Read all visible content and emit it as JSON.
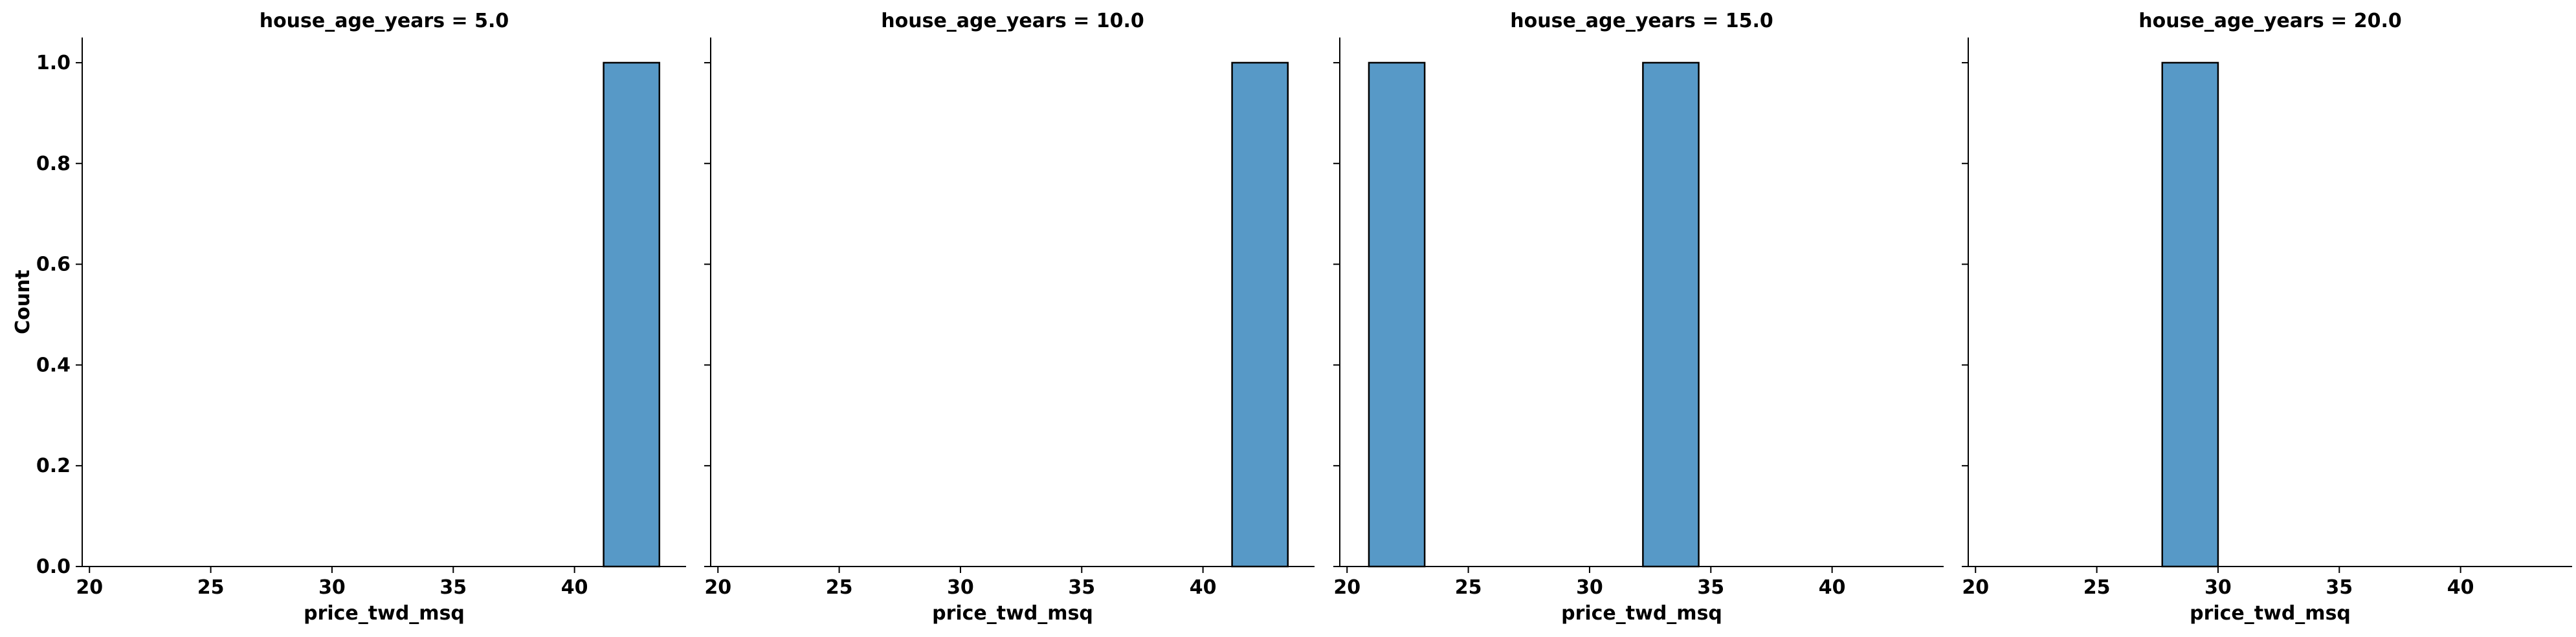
{
  "chart_data": {
    "type": "bar",
    "ylabel": "Count",
    "xlabel": "price_twd_msq",
    "xlim": [
      19.7,
      44.6
    ],
    "ylim": [
      0,
      1.05
    ],
    "xticks": [
      "20",
      "25",
      "30",
      "35",
      "40"
    ],
    "yticks": [
      "0.0",
      "0.2",
      "0.4",
      "0.6",
      "0.8",
      "1.0"
    ],
    "bar_color": "#5799c7",
    "bar_edge_color": "#000000",
    "sharey": true,
    "facets": [
      {
        "title": "house_age_years = 5.0",
        "bars": [
          {
            "x0": 41.2,
            "x1": 43.5,
            "count": 1
          }
        ]
      },
      {
        "title": "house_age_years = 10.0",
        "bars": [
          {
            "x0": 41.2,
            "x1": 43.5,
            "count": 1
          }
        ]
      },
      {
        "title": "house_age_years = 15.0",
        "bars": [
          {
            "x0": 20.9,
            "x1": 23.2,
            "count": 1
          },
          {
            "x0": 32.2,
            "x1": 34.5,
            "count": 1
          }
        ]
      },
      {
        "title": "house_age_years = 20.0",
        "bars": [
          {
            "x0": 27.7,
            "x1": 30.0,
            "count": 1
          }
        ]
      }
    ]
  }
}
